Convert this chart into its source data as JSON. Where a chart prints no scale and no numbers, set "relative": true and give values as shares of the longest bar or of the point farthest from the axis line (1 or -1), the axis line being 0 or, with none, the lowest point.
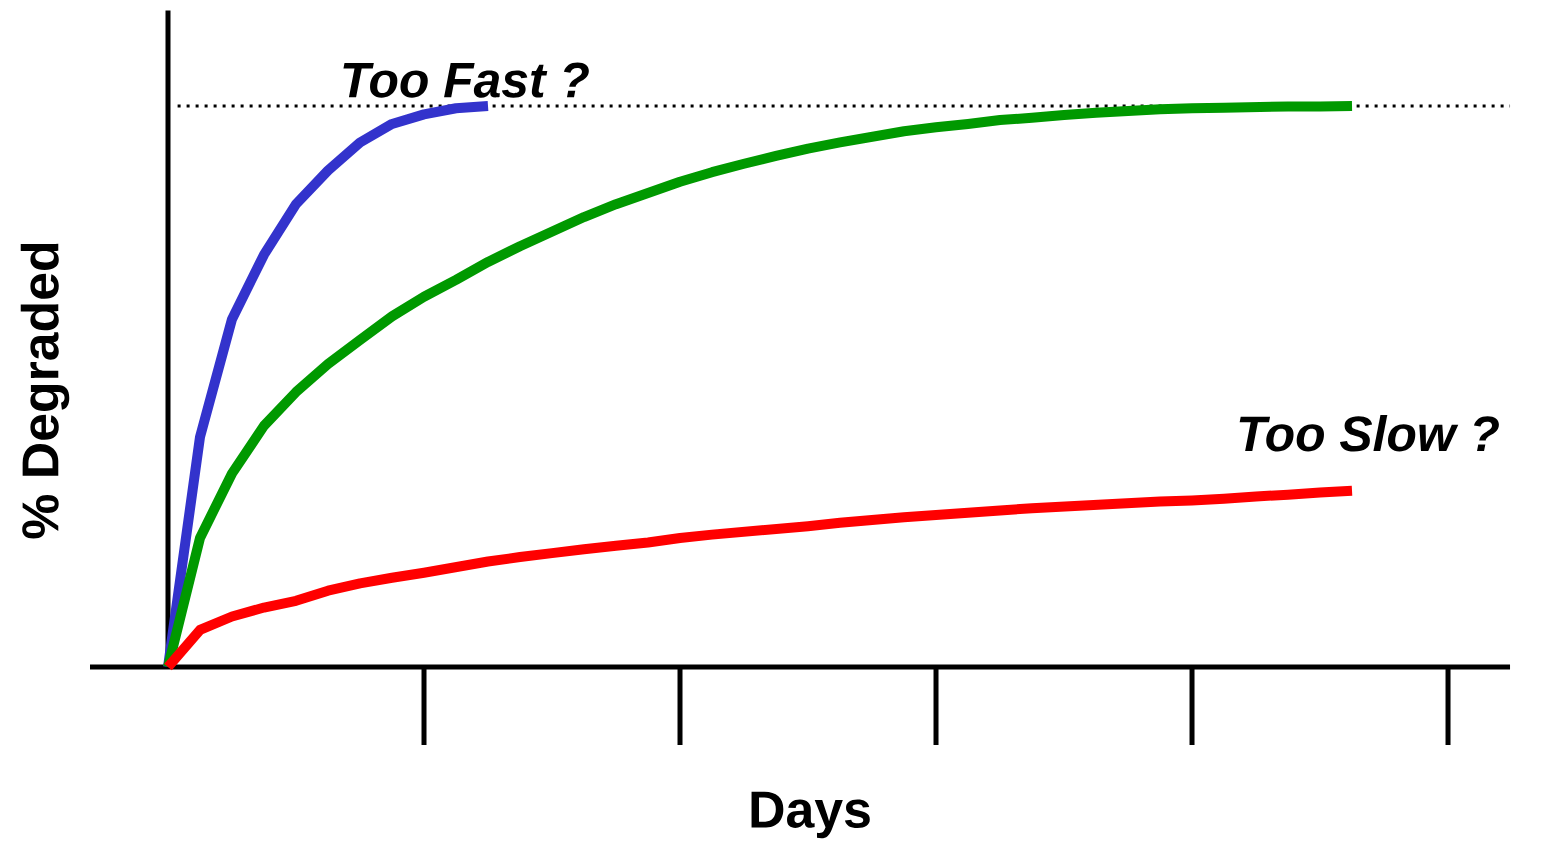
{
  "chart_data": {
    "type": "line",
    "relative": true,
    "xlabel": "Days",
    "ylabel": "% Degraded",
    "categories": [
      null,
      null,
      null,
      null,
      null,
      null,
      null,
      null,
      null,
      null,
      null,
      null,
      null,
      null,
      null,
      null,
      null,
      null,
      null,
      null,
      null,
      null,
      null,
      null,
      null,
      null,
      null,
      null,
      null,
      null,
      null,
      null,
      null,
      null,
      null,
      null,
      null,
      null
    ],
    "series": [
      {
        "color": "#3333cc",
        "values": [
          0,
          0.41,
          0.62,
          0.735,
          0.825,
          0.885,
          0.935,
          0.968,
          0.985,
          0.996,
          1.0,
          null,
          null,
          null,
          null,
          null,
          null,
          null,
          null,
          null,
          null,
          null,
          null,
          null,
          null,
          null,
          null,
          null,
          null,
          null,
          null,
          null,
          null,
          null,
          null,
          null,
          null,
          null
        ]
      },
      {
        "color": "#009900",
        "values": [
          0,
          0.23,
          0.345,
          0.43,
          0.49,
          0.54,
          0.583,
          0.625,
          0.66,
          0.69,
          0.722,
          0.75,
          0.776,
          0.802,
          0.825,
          0.845,
          0.865,
          0.882,
          0.897,
          0.911,
          0.924,
          0.935,
          0.945,
          0.955,
          0.962,
          0.968,
          0.975,
          0.979,
          0.984,
          0.988,
          0.991,
          0.994,
          0.996,
          0.997,
          0.998,
          0.999,
          0.999,
          1.0
        ]
      },
      {
        "color": "#ff0000",
        "values": [
          0,
          0.066,
          0.09,
          0.106,
          0.118,
          0.136,
          0.149,
          0.159,
          0.168,
          0.178,
          0.188,
          0.196,
          0.203,
          0.21,
          0.216,
          0.222,
          0.23,
          0.236,
          0.241,
          0.246,
          0.251,
          0.257,
          0.262,
          0.267,
          0.271,
          0.275,
          0.279,
          0.283,
          0.286,
          0.289,
          0.292,
          0.295,
          0.297,
          0.3,
          0.304,
          0.307,
          0.311,
          0.314
        ]
      }
    ],
    "ref_lines": [
      {
        "axis": "y",
        "value": 1,
        "line_style": "dotted",
        "color": "#000000"
      }
    ],
    "annotations": [
      "Too Fast ?",
      "Too Slow ?"
    ],
    "line_style": "solid",
    "marker": "none",
    "grid": false
  }
}
